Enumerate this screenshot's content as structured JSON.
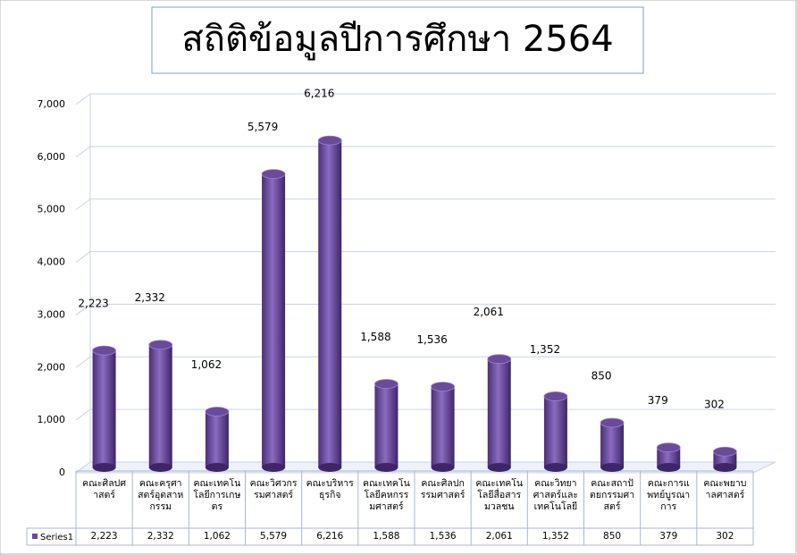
{
  "chart_data": {
    "type": "bar",
    "title": "สถิติข้อมูลปีการศึกษา 2564",
    "categories": [
      "คณะศิลปศาสตร์",
      "คณะครุศาสตร์อุตสาหกรรม",
      "คณะเทคโนโลยีการเกษตร",
      "คณะวิศวกรรมศาสตร์",
      "คณะบริหารธุรกิจ",
      "คณะเทคโนโลยีคหกรรมศาสตร์",
      "คณะศิลปกรรมศาสตร์",
      "คณะเทคโนโลยีสื่อสารมวลชน",
      "คณะวิทยาศาสตร์และเทคโนโลยี",
      "คณะสถาปัตยกรรมศาสตร์",
      "คณะการแพทย์บูรณาการ",
      "คณะพยาบาลศาสตร์"
    ],
    "series": [
      {
        "name": "Series1",
        "color": "#6a4a9c",
        "values": [
          2223,
          2332,
          1062,
          5579,
          6216,
          1588,
          1536,
          2061,
          1352,
          850,
          379,
          302
        ],
        "value_labels": [
          "2,223",
          "2,332",
          "1,062",
          "5,579",
          "6,216",
          "1,588",
          "1,536",
          "2,061",
          "1,352",
          "850",
          "379",
          "302"
        ]
      }
    ],
    "ylim": [
      0,
      7000
    ],
    "yticks": [
      0,
      {
        "value": 1000,
        "label": "1,000"
      },
      {
        "value": 2000,
        "label": "2,000"
      },
      {
        "value": 3000,
        "label": "3,000"
      },
      {
        "value": 4000,
        "label": "4,000"
      },
      {
        "value": 5000,
        "label": "5,000"
      },
      {
        "value": 6000,
        "label": "6,000"
      },
      {
        "value": 7000,
        "label": "7,000"
      }
    ],
    "grid": true
  }
}
